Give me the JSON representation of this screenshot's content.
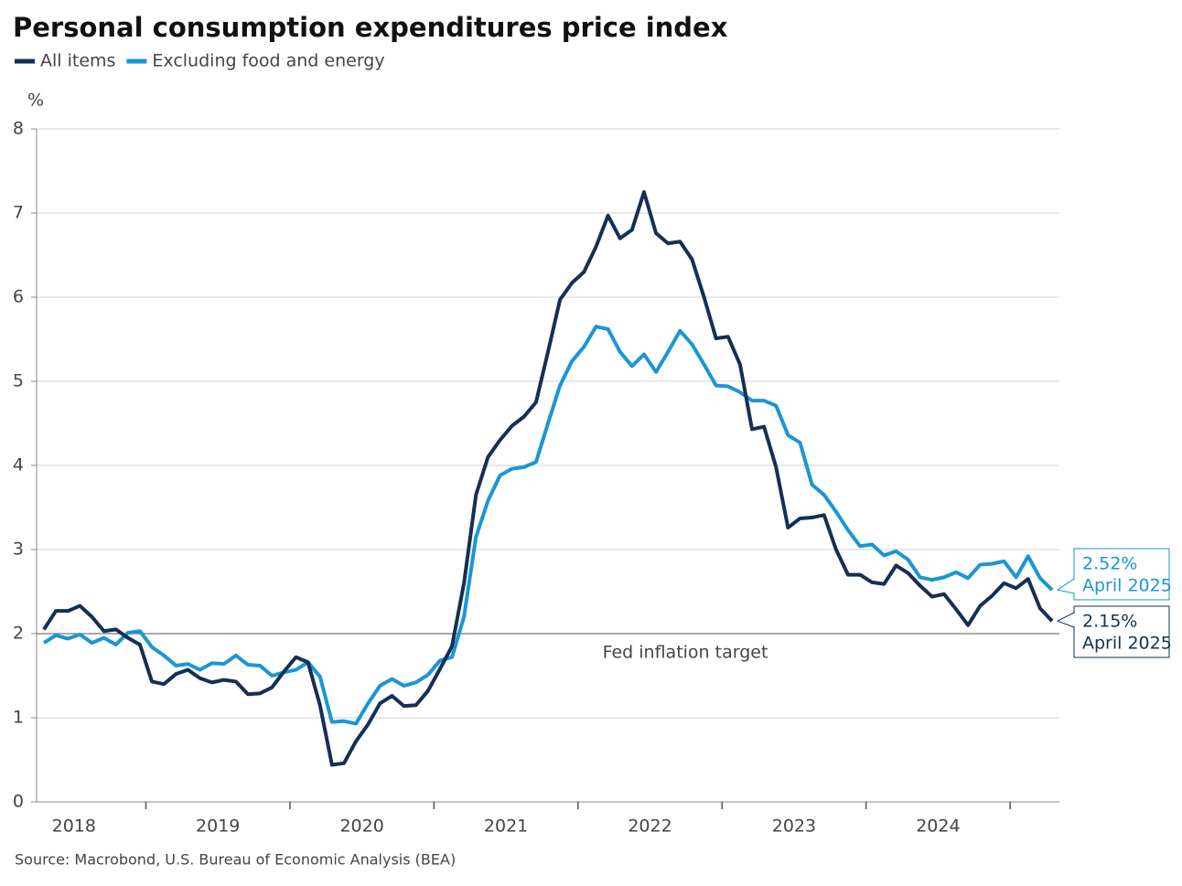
{
  "chart_data": {
    "type": "line",
    "title": "Personal consumption expenditures price index",
    "ylabel": "%",
    "source": "Source: Macrobond, U.S. Bureau of Economic Analysis (BEA)",
    "categories": [
      null,
      null,
      null,
      "2018",
      null,
      null,
      null,
      null,
      null,
      null,
      null,
      null,
      null,
      null,
      null,
      "2019",
      null,
      null,
      null,
      null,
      null,
      null,
      null,
      null,
      null,
      null,
      null,
      "2020",
      null,
      null,
      null,
      null,
      null,
      null,
      null,
      null,
      null,
      null,
      null,
      "2021",
      null,
      null,
      null,
      null,
      null,
      null,
      null,
      null,
      null,
      null,
      null,
      "2022",
      null,
      null,
      null,
      null,
      null,
      null,
      null,
      null,
      null,
      null,
      null,
      "2023",
      null,
      null,
      null,
      null,
      null,
      null,
      null,
      null,
      null,
      null,
      null,
      "2024",
      null,
      null,
      null,
      null,
      null,
      null,
      null,
      null,
      null
    ],
    "series": [
      {
        "name": "All items",
        "color": "#152f55",
        "end_label": "2.15%",
        "end_date": "April 2025",
        "values": [
          2.05,
          2.27,
          2.27,
          2.33,
          2.2,
          2.03,
          2.05,
          1.95,
          1.87,
          1.43,
          1.4,
          1.52,
          1.57,
          1.47,
          1.42,
          1.45,
          1.43,
          1.28,
          1.29,
          1.36,
          1.55,
          1.72,
          1.66,
          1.15,
          0.44,
          0.46,
          0.72,
          0.92,
          1.17,
          1.26,
          1.14,
          1.15,
          1.32,
          1.58,
          1.85,
          2.6,
          3.65,
          4.1,
          4.3,
          4.47,
          4.58,
          4.75,
          5.35,
          5.97,
          6.17,
          6.3,
          6.6,
          6.97,
          6.7,
          6.8,
          7.25,
          6.76,
          6.64,
          6.66,
          6.45,
          6.0,
          5.51,
          5.53,
          5.2,
          4.43,
          4.46,
          3.98,
          3.26,
          3.37,
          3.38,
          3.41,
          3.0,
          2.7,
          2.7,
          2.61,
          2.59,
          2.81,
          2.72,
          2.57,
          2.44,
          2.47,
          2.29,
          2.1,
          2.33,
          2.45,
          2.6,
          2.54,
          2.65,
          2.3,
          2.15
        ]
      },
      {
        "name": "Excluding food and energy",
        "color": "#1a96d4",
        "end_label": "2.52%",
        "end_date": "April 2025",
        "values": [
          1.89,
          1.98,
          1.94,
          1.99,
          1.89,
          1.95,
          1.87,
          2.01,
          2.03,
          1.84,
          1.74,
          1.62,
          1.64,
          1.57,
          1.65,
          1.64,
          1.74,
          1.63,
          1.62,
          1.5,
          1.54,
          1.57,
          1.66,
          1.49,
          0.95,
          0.96,
          0.93,
          1.17,
          1.38,
          1.46,
          1.38,
          1.42,
          1.51,
          1.68,
          1.72,
          2.2,
          3.15,
          3.58,
          3.88,
          3.96,
          3.98,
          4.04,
          4.5,
          4.95,
          5.24,
          5.41,
          5.65,
          5.62,
          5.35,
          5.18,
          5.32,
          5.11,
          5.35,
          5.6,
          5.44,
          5.2,
          4.95,
          4.94,
          4.87,
          4.77,
          4.77,
          4.71,
          4.36,
          4.27,
          3.77,
          3.65,
          3.45,
          3.23,
          3.04,
          3.06,
          2.93,
          2.98,
          2.88,
          2.67,
          2.64,
          2.67,
          2.73,
          2.66,
          2.82,
          2.83,
          2.86,
          2.67,
          2.92,
          2.66,
          2.52
        ]
      }
    ],
    "target": {
      "value": 2,
      "label": "Fed inflation target"
    },
    "ylim": [
      0,
      8
    ],
    "yticks": [
      0,
      1,
      2,
      3,
      4,
      5,
      6,
      7,
      8
    ],
    "grid": true
  }
}
